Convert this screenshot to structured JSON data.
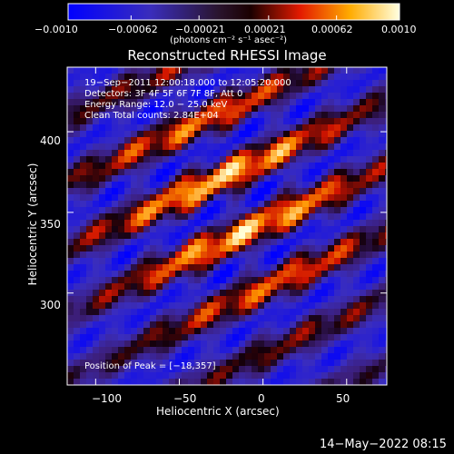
{
  "chart_data": {
    "type": "heatmap",
    "title": "Reconstructed RHESSI Image",
    "xlabel": "Heliocentric X (arcsec)",
    "ylabel": "Heliocentric Y (arcsec)",
    "xlim": [
      -117,
      74
    ],
    "ylim": [
      243,
      440
    ],
    "xticks": [
      -100,
      -50,
      0,
      50
    ],
    "xtick_labels": [
      "−100",
      "−50",
      "0",
      "50"
    ],
    "yticks": [
      300,
      350,
      400
    ],
    "ytick_labels": [
      "300",
      "350",
      "400"
    ],
    "colorbar": {
      "min": -0.001,
      "max": 0.001,
      "ticks": [
        -0.001,
        -0.00062,
        -0.00021,
        0.00021,
        0.00062,
        0.001
      ],
      "tick_labels": [
        "−0.0010",
        "−0.00062",
        "−0.00021",
        "0.00021",
        "0.00062",
        "0.0010"
      ],
      "unit_label": "(photons cm⁻² s⁻¹ asec⁻²)"
    },
    "annotations": [
      "19−Sep−2011 12:00:18.000 to 12:05:20.000",
      "Detectors: 3F 4F 5F 6F 7F 8F, Att 0",
      "Energy Range: 12.0 − 25.0 keV",
      "Clean     Total counts: 2.84E+04"
    ],
    "peak_label": "Position of Peak = [−18,357]",
    "peak": {
      "x": -18,
      "y": 357
    },
    "grid": false
  },
  "footer": {
    "timestamp": "14−May−2022 08:15"
  }
}
